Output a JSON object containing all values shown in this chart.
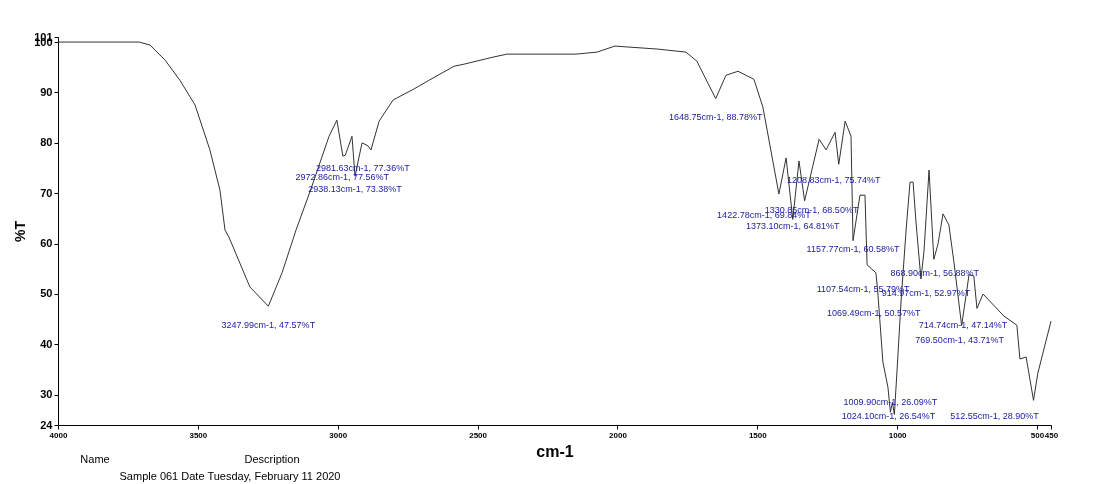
{
  "chart_data": {
    "type": "line",
    "xlabel": "cm-1",
    "ylabel": "%T",
    "xlim": [
      4000,
      450
    ],
    "xticks": [
      4000,
      3500,
      3000,
      2500,
      2000,
      1500,
      1000,
      500,
      450
    ],
    "ylim": [
      24,
      101
    ],
    "yticks": [
      24,
      30,
      40,
      50,
      60,
      70,
      80,
      90,
      100,
      101
    ],
    "grid": false,
    "marker": "none",
    "line_style": "solid",
    "series": [
      {
        "color": "#333333",
        "x": [
          4000,
          3710,
          3671,
          3617,
          3564,
          3510,
          3457,
          3421,
          3403,
          3389,
          3314,
          3247.99,
          3199,
          3149,
          3096,
          3031,
          3003,
          2981.63,
          2972.86,
          2949,
          2938.13,
          2913,
          2892,
          2881,
          2852,
          2802,
          2727,
          2674,
          2584,
          2549,
          2445,
          2395,
          2316,
          2241,
          2148,
          2073,
          2009,
          1959,
          1855,
          1755,
          1716,
          1648.75,
          1612,
          1569,
          1512,
          1480,
          1422.78,
          1397,
          1373.1,
          1351,
          1330.85,
          1279,
          1254,
          1222,
          1208.83,
          1186,
          1165,
          1157.77,
          1133,
          1115,
          1107.54,
          1076,
          1069.49,
          1051,
          1033,
          1024.1,
          1017,
          1009.9,
          1001,
          986,
          968,
          954,
          943,
          933,
          914.97,
          904,
          886,
          868.9,
          854,
          836,
          815,
          797,
          769.5,
          743,
          726,
          714.74,
          693,
          618,
          572,
          561,
          539,
          512.55,
          497,
          450
        ],
        "values": [
          100.0,
          100.0,
          99.4,
          96.4,
          92.4,
          87.5,
          78.6,
          70.6,
          62.7,
          61.3,
          51.4,
          47.57,
          54.2,
          62.7,
          70.8,
          81.3,
          84.5,
          77.36,
          77.56,
          81.3,
          73.38,
          80.0,
          79.4,
          78.6,
          84.3,
          88.5,
          90.7,
          92.4,
          95.2,
          95.6,
          97.0,
          97.6,
          97.6,
          97.6,
          97.6,
          98.0,
          99.2,
          99.0,
          98.6,
          98.0,
          96.2,
          88.78,
          93.4,
          94.2,
          92.6,
          87.1,
          69.84,
          77.0,
          64.81,
          76.4,
          68.5,
          80.7,
          78.6,
          82.1,
          75.74,
          84.3,
          81.3,
          60.58,
          69.6,
          69.6,
          55.79,
          54.2,
          50.57,
          36.5,
          31.5,
          26.54,
          28.5,
          26.09,
          34.3,
          48.6,
          62.7,
          72.2,
          72.2,
          64.5,
          52.97,
          58.5,
          74.6,
          56.88,
          59.9,
          65.9,
          63.7,
          56.3,
          43.71,
          53.8,
          53.6,
          47.14,
          50.0,
          45.6,
          43.8,
          37.1,
          37.5,
          28.9,
          34.3,
          44.6
        ]
      }
    ],
    "annotations": [
      {
        "text": "3247.99cm-1, 47.57%T",
        "x": 3247.99,
        "y": 47.57
      },
      {
        "text": "2981.63cm-1, 77.36%T",
        "x": 2981.63,
        "y": 77.36
      },
      {
        "text": "2972.86cm-1, 77.56%T",
        "x": 2972.86,
        "y": 77.56
      },
      {
        "text": "2938.13cm-1, 73.38%T",
        "x": 2938.13,
        "y": 73.38
      },
      {
        "text": "1648.75cm-1, 88.78%T",
        "x": 1648.75,
        "y": 88.78
      },
      {
        "text": "1208.83cm-1, 75.74%T",
        "x": 1208.83,
        "y": 75.74
      },
      {
        "text": "1330.85cm-1, 68.50%T",
        "x": 1330.85,
        "y": 68.5
      },
      {
        "text": "1422.78cm-1, 69.84%T",
        "x": 1422.78,
        "y": 69.84
      },
      {
        "text": "1373.10cm-1, 64.81%T",
        "x": 1373.1,
        "y": 64.81
      },
      {
        "text": "1157.77cm-1, 60.58%T",
        "x": 1157.77,
        "y": 60.58
      },
      {
        "text": "1107.54cm-1, 55.79%T",
        "x": 1107.54,
        "y": 55.79
      },
      {
        "text": "1069.49cm-1, 50.57%T",
        "x": 1069.49,
        "y": 50.57
      },
      {
        "text": "914.97cm-1, 52.97%T",
        "x": 914.97,
        "y": 52.97
      },
      {
        "text": "868.90cm-1, 56.88%T",
        "x": 868.9,
        "y": 56.88
      },
      {
        "text": "714.74cm-1, 47.14%T",
        "x": 714.74,
        "y": 47.14
      },
      {
        "text": "769.50cm-1, 43.71%T",
        "x": 769.5,
        "y": 43.71
      },
      {
        "text": "1009.90cm-1, 26.09%T",
        "x": 1009.9,
        "y": 26.09
      },
      {
        "text": "1024.10cm-1, 26.54%T",
        "x": 1024.1,
        "y": 26.54
      },
      {
        "text": "512.55cm-1, 28.90%T",
        "x": 512.55,
        "y": 28.9
      },
      "Name",
      "Description",
      "Sample 061 Date Tuesday, February 11 2020"
    ]
  }
}
